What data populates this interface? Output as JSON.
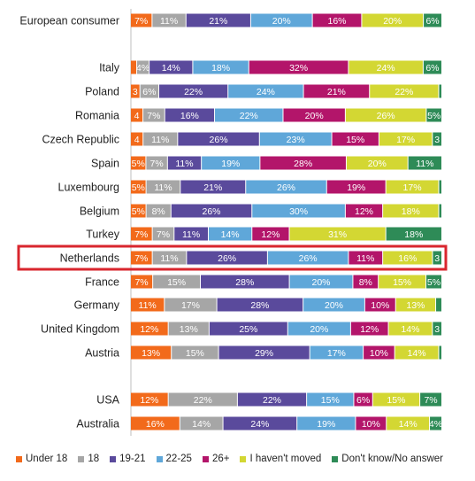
{
  "chart_data": {
    "type": "bar",
    "orientation": "horizontal",
    "stacked": true,
    "xlim": [
      0,
      100
    ],
    "grid": false,
    "legend_position": "bottom",
    "categories": [
      "European consumer",
      "Italy",
      "Poland",
      "Romania",
      "Czech Republic",
      "Spain",
      "Luxembourg",
      "Belgium",
      "Turkey",
      "Netherlands",
      "France",
      "Germany",
      "United Kingdom",
      "Austria",
      "USA",
      "Australia"
    ],
    "highlighted_category": "Netherlands",
    "series": [
      {
        "name": "Under 18",
        "color": "#f26a1b",
        "values": [
          7,
          2,
          3,
          4,
          4,
          5,
          5,
          5,
          7,
          7,
          7,
          11,
          12,
          13,
          12,
          16
        ],
        "labels": [
          "7%",
          "",
          "3",
          "4",
          "4",
          "5%",
          "5%",
          "5%",
          "7%",
          "7%",
          "7%",
          "11%",
          "12%",
          "13%",
          "12%",
          "16%"
        ]
      },
      {
        "name": "18",
        "color": "#a6a6a6",
        "values": [
          11,
          4,
          6,
          7,
          11,
          7,
          11,
          8,
          7,
          11,
          15,
          17,
          13,
          15,
          22,
          14
        ],
        "labels": [
          "11%",
          "4%",
          "6%",
          "7%",
          "11%",
          "7%",
          "11%",
          "8%",
          "7%",
          "11%",
          "15%",
          "17%",
          "13%",
          "15%",
          "22%",
          "14%"
        ]
      },
      {
        "name": "19-21",
        "color": "#5a4a9c",
        "values": [
          21,
          14,
          22,
          16,
          26,
          11,
          21,
          26,
          11,
          26,
          28,
          28,
          25,
          29,
          22,
          24
        ],
        "labels": [
          "21%",
          "14%",
          "22%",
          "16%",
          "26%",
          "11%",
          "21%",
          "26%",
          "11%",
          "26%",
          "28%",
          "28%",
          "25%",
          "29%",
          "22%",
          "24%"
        ]
      },
      {
        "name": "22-25",
        "color": "#5fa7d9",
        "values": [
          20,
          18,
          24,
          22,
          23,
          19,
          26,
          30,
          14,
          26,
          20,
          20,
          20,
          17,
          15,
          19
        ],
        "labels": [
          "20%",
          "18%",
          "24%",
          "22%",
          "23%",
          "19%",
          "26%",
          "30%",
          "14%",
          "26%",
          "20%",
          "20%",
          "20%",
          "17%",
          "15%",
          "19%"
        ]
      },
      {
        "name": "26+",
        "color": "#b3156a",
        "values": [
          16,
          32,
          21,
          20,
          15,
          28,
          19,
          12,
          12,
          11,
          8,
          10,
          12,
          10,
          6,
          10
        ],
        "labels": [
          "16%",
          "32%",
          "21%",
          "20%",
          "15%",
          "28%",
          "19%",
          "12%",
          "12%",
          "11%",
          "8%",
          "10%",
          "12%",
          "10%",
          "6%",
          "10%"
        ]
      },
      {
        "name": "I haven't moved",
        "color": "#d3d733",
        "values": [
          20,
          24,
          22,
          26,
          17,
          20,
          17,
          18,
          31,
          16,
          15,
          13,
          14,
          14,
          15,
          14
        ],
        "labels": [
          "20%",
          "24%",
          "22%",
          "26%",
          "17%",
          "20%",
          "17%",
          "18%",
          "31%",
          "16%",
          "15%",
          "13%",
          "14%",
          "14%",
          "15%",
          "14%"
        ]
      },
      {
        "name": "Don't know/No answer",
        "color": "#2e8b57",
        "values": [
          6,
          6,
          1,
          5,
          3,
          11,
          1,
          1,
          18,
          3,
          5,
          2,
          3,
          1,
          7,
          4
        ],
        "labels": [
          "6%",
          "6%",
          "",
          "5%",
          "3",
          "11%",
          "",
          "",
          "18%",
          "3",
          "5%",
          "",
          "3",
          "",
          "7%",
          "4%"
        ]
      }
    ]
  }
}
